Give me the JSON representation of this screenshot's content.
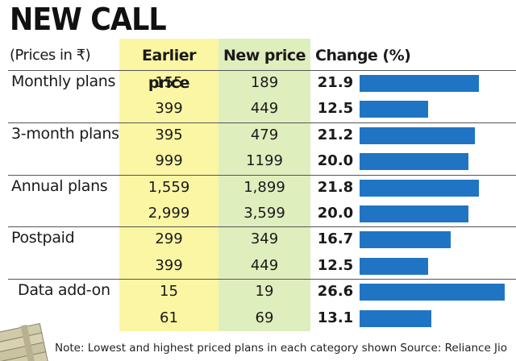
{
  "header": {
    "title": "NEW CALL",
    "subtitle": "(Prices in ₹)",
    "col_earlier": "Earlier price",
    "col_new": "New price",
    "col_change": "Change (%)"
  },
  "chart_data": {
    "type": "table",
    "title": "NEW CALL",
    "columns": [
      "Earlier price",
      "New price",
      "Change (%)"
    ],
    "rows": [
      {
        "category": "Monthly plans",
        "earlier": "155",
        "new": "189",
        "change": "21.9",
        "change_val": 21.9
      },
      {
        "category": "",
        "earlier": "399",
        "new": "449",
        "change": "12.5",
        "change_val": 12.5
      },
      {
        "category": "3-month plans",
        "earlier": "395",
        "new": "479",
        "change": "21.2",
        "change_val": 21.2
      },
      {
        "category": "",
        "earlier": "999",
        "new": "1199",
        "change": "20.0",
        "change_val": 20.0
      },
      {
        "category": "Annual plans",
        "earlier": "1,559",
        "new": "1,899",
        "change": "21.8",
        "change_val": 21.8
      },
      {
        "category": "",
        "earlier": "2,999",
        "new": "3,599",
        "change": "20.0",
        "change_val": 20.0
      },
      {
        "category": "Postpaid",
        "earlier": "299",
        "new": "349",
        "change": "16.7",
        "change_val": 16.7
      },
      {
        "category": "",
        "earlier": "399",
        "new": "449",
        "change": "12.5",
        "change_val": 12.5
      },
      {
        "category": "Data add-on",
        "earlier": "15",
        "new": "19",
        "change": "26.6",
        "change_val": 26.6
      },
      {
        "category": "",
        "earlier": "61",
        "new": "69",
        "change": "13.1",
        "change_val": 13.1
      }
    ],
    "bar_max": 26.6
  },
  "footer": {
    "note": "Note: Lowest and highest priced plans in each category shown  Source: Reliance Jio"
  },
  "colors": {
    "earlier_bg": "#fbf6a3",
    "new_bg": "#dfeebd",
    "bar": "#1f75c4"
  }
}
